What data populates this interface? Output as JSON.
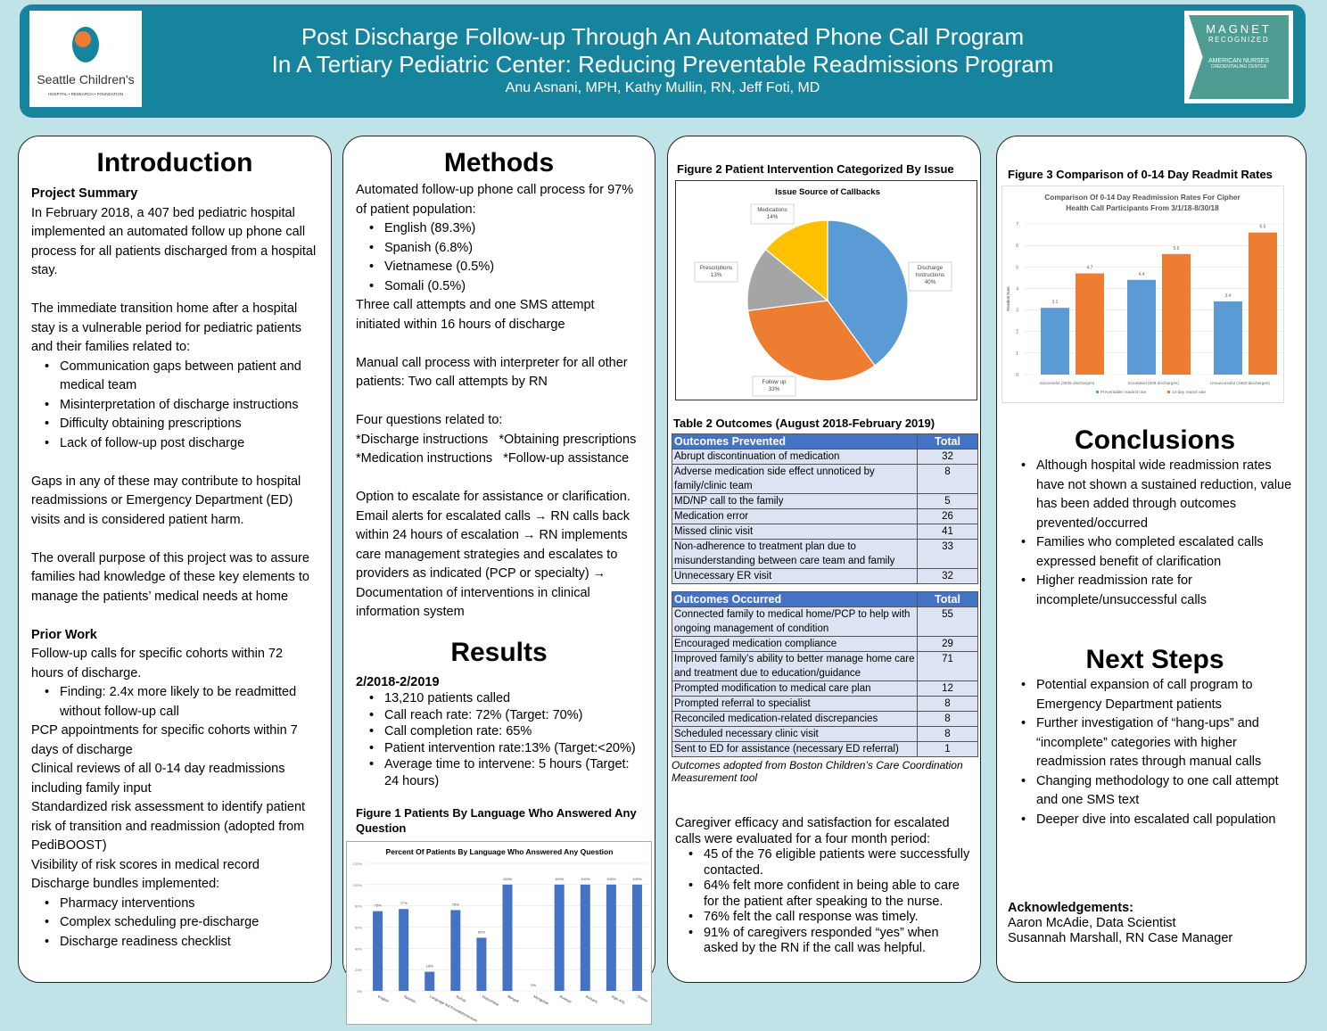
{
  "header": {
    "title_line1": "Post Discharge Follow-up Through An Automated Phone Call Program",
    "title_line2": "In A Tertiary Pediatric Center: Reducing Preventable Readmissions Program",
    "authors": "Anu Asnani, MPH, Kathy Mullin, RN, Jeff Foti, MD",
    "logo_left": {
      "name": "Seattle Children's®",
      "tagline": "HOSPITAL • RESEARCH • FOUNDATION"
    },
    "logo_right": {
      "l1": "MAGNET",
      "l2": "RECOGNIZED",
      "l3": "AMERICAN NURSES",
      "l4": "CREDENTIALING CENTER"
    },
    "color": "#17849d"
  },
  "intro": {
    "title": "Introduction",
    "blocks": [
      {
        "t": "h",
        "text": "Project Summary"
      },
      {
        "t": "p",
        "text": "In February 2018, a 407 bed pediatric hospital implemented an automated follow up phone call process for all patients discharged from a hospital stay."
      },
      {
        "t": "p",
        "gap": true,
        "text": "The immediate transition home after a hospital stay is a vulnerable period for pediatric patients and their families related to:"
      },
      {
        "t": "ul",
        "items": [
          "Communication gaps between patient and medical team",
          "Misinterpretation of discharge instructions",
          "Difficulty obtaining prescriptions",
          "Lack of follow-up post discharge"
        ]
      },
      {
        "t": "p",
        "gap": true,
        "text": "Gaps in any of these may contribute to hospital readmissions or Emergency Department (ED) visits and is considered patient harm."
      },
      {
        "t": "p",
        "gap": true,
        "text": "The overall purpose of this project was to assure families had knowledge of these key elements to manage the patients’ medical needs at home"
      },
      {
        "t": "h",
        "gap": true,
        "text": "Prior Work"
      },
      {
        "t": "p",
        "text": "Follow-up calls for specific cohorts within 72 hours of discharge."
      },
      {
        "t": "ul",
        "items": [
          "Finding: 2.4x more likely to be readmitted without follow-up call"
        ]
      },
      {
        "t": "p",
        "text": "PCP appointments for specific cohorts within 7 days of discharge"
      },
      {
        "t": "p",
        "text": "Clinical reviews of all 0-14 day readmissions including family input"
      },
      {
        "t": "p",
        "text": "Standardized risk assessment to identify patient risk of transition and readmission (adopted from PediBOOST)"
      },
      {
        "t": "p",
        "text": "Visibility of risk scores in medical record"
      },
      {
        "t": "p",
        "text": "Discharge bundles implemented:"
      },
      {
        "t": "ul",
        "items": [
          "Pharmacy interventions",
          "Complex scheduling pre-discharge",
          "Discharge readiness checklist"
        ]
      }
    ]
  },
  "methods": {
    "title": "Methods",
    "blocks": [
      {
        "t": "p",
        "text": "Automated follow-up phone call process for 97% of patient population:"
      },
      {
        "t": "ul",
        "items": [
          "English (89.3%)",
          "Spanish (6.8%)",
          "Vietnamese (0.5%)",
          "Somali (0.5%)"
        ]
      },
      {
        "t": "p",
        "text": "Three call attempts and one SMS attempt initiated within 16 hours of discharge"
      },
      {
        "t": "p",
        "gap": true,
        "text": "Manual call process with interpreter for all other patients: Two call attempts by RN"
      },
      {
        "t": "p",
        "gap": true,
        "text": "Four questions related to:"
      },
      {
        "t": "p",
        "text": "*Discharge instructions   *Obtaining prescriptions"
      },
      {
        "t": "p",
        "text": "*Medication instructions   *Follow-up assistance"
      },
      {
        "t": "p",
        "gap": true,
        "text": "Option to escalate for assistance or clarification. Email alerts for escalated calls → RN calls back within 24 hours of escalation → RN implements care management strategies and escalates to providers as indicated (PCP or specialty) → Documentation of interventions in clinical information system"
      }
    ]
  },
  "results": {
    "title": "Results",
    "blocks": [
      {
        "t": "h",
        "text": "2/2018-2/2019"
      },
      {
        "t": "ul",
        "items": [
          "13,210 patients called",
          "Call reach rate: 72% (Target: 70%)",
          "Call completion rate: 65%",
          "Patient intervention rate:13% (Target:<20%)",
          "Average time to intervene: 5 hours (Target: 24 hours)"
        ]
      }
    ],
    "figure1_caption": "Figure 1 Patients By Language Who Answered Any Question"
  },
  "column3": {
    "figure2_caption": "Figure 2 Patient Intervention Categorized By Issue",
    "table_title": "Table 2 Outcomes (August 2018-February 2019)",
    "prevented": {
      "headers": [
        "Outcomes Prevented",
        "Total"
      ],
      "rows": [
        [
          "Abrupt discontinuation of medication",
          "32"
        ],
        [
          "Adverse medication side effect unnoticed by family/clinic team",
          "8"
        ],
        [
          "MD/NP call to the family",
          "5"
        ],
        [
          "Medication error",
          "26"
        ],
        [
          "Missed clinic visit",
          "41"
        ],
        [
          "Non-adherence to treatment plan due to misunderstanding between care team and family",
          "33"
        ],
        [
          "Unnecessary ER visit",
          "32"
        ]
      ]
    },
    "occurred": {
      "headers": [
        "Outcomes Occurred",
        "Total"
      ],
      "rows": [
        [
          "Connected family to medical home/PCP to help with ongoing management of condition",
          "55"
        ],
        [
          "Encouraged medication compliance",
          "29"
        ],
        [
          "Improved family’s ability to better manage home care and treatment due to education/guidance",
          "71"
        ],
        [
          "Prompted modification to medical care plan",
          "12"
        ],
        [
          "Prompted referral to specialist",
          "8"
        ],
        [
          "Reconciled medication-related discrepancies",
          "8"
        ],
        [
          "Scheduled necessary clinic visit",
          "8"
        ],
        [
          "Sent to ED for assistance (necessary ED referral)",
          "1"
        ]
      ]
    },
    "table_note": "Outcomes adopted from Boston Children’s Care Coordination Measurement tool",
    "blocks": [
      {
        "t": "p",
        "text": "Caregiver efficacy and satisfaction for escalated calls were evaluated for a four month period:"
      },
      {
        "t": "ul",
        "items": [
          "45 of the 76 eligible patients were successfully contacted.",
          "64% felt more confident in being able to care for the patient after speaking to the nurse.",
          "76% felt the call response was timely.",
          "91% of caregivers responded “yes” when asked by the RN if the call was helpful."
        ]
      }
    ]
  },
  "column4": {
    "figure3_caption": "Figure 3 Comparison of 0-14 Day Readmit Rates",
    "conclusions": {
      "title": "Conclusions",
      "blocks": [
        {
          "t": "ul",
          "items": [
            "Although hospital wide readmission rates have not shown a sustained reduction, value has been added through outcomes prevented/occurred",
            "Families who completed escalated calls expressed benefit of clarification",
            "Higher readmission rate for incomplete/unsuccessful calls"
          ]
        }
      ]
    },
    "next_steps": {
      "title": "Next Steps",
      "blocks": [
        {
          "t": "ul",
          "items": [
            "Potential expansion of call program to Emergency Department patients",
            "Further investigation of “hang-ups” and “incomplete” categories with higher readmission rates through manual calls",
            "Changing methodology to one call attempt and one SMS text",
            "Deeper dive into escalated call population"
          ]
        }
      ]
    },
    "ack": {
      "title": "Acknowledgements:",
      "lines": [
        "Aaron McAdie, Data Scientist",
        "Susannah Marshall, RN Case Manager"
      ]
    }
  },
  "chart_data": [
    {
      "id": "fig1",
      "type": "bar",
      "title": "Percent Of Patients By Language Who Answered Any Question",
      "categories": [
        "English",
        "Spanish",
        "Language Not Provided/Unknown",
        "Somali",
        "Vietnamese",
        "Bengali",
        "Mongolian",
        "Russian",
        "Amharic",
        "Sign-ASL",
        "Oromo"
      ],
      "values": [
        75,
        77,
        18,
        76,
        50,
        100,
        0,
        100,
        100,
        100,
        100
      ],
      "data_labels": [
        "75%",
        "77%",
        "18%",
        "76%",
        "50%",
        "100%",
        "0%",
        "100%",
        "100%",
        "100%",
        "100%"
      ],
      "ylim": [
        0,
        120
      ],
      "yticks": [
        "0%",
        "20%",
        "40%",
        "60%",
        "80%",
        "100%",
        "120%"
      ],
      "grid": true,
      "color": "#4472c4"
    },
    {
      "id": "fig2",
      "type": "pie",
      "title": "Issue Source of Callbacks",
      "slices": [
        {
          "label": "Discharge Instructions",
          "value": 40,
          "text": "40%",
          "color": "#5b9bd5"
        },
        {
          "label": "Follow up",
          "value": 33,
          "text": "33%",
          "color": "#ed7d31"
        },
        {
          "label": "Prescriptions",
          "value": 13,
          "text": "13%",
          "color": "#a5a5a5"
        },
        {
          "label": "Medications",
          "value": 14,
          "text": "14%",
          "color": "#ffc000"
        }
      ]
    },
    {
      "id": "fig3",
      "type": "bar",
      "title": "Comparison Of 0-14 Day Readmission Rates For Cipher Health Call Participants From 3/1/18-8/30/18",
      "categories": [
        "Successful (3538 discharges)",
        "Escalated (605 discharges)",
        "Unsuccessful (1862 discharges)"
      ],
      "series": [
        {
          "name": "Preventable readmit rate",
          "values": [
            3.1,
            4.4,
            3.4
          ],
          "color": "#5b9bd5"
        },
        {
          "name": "14-day reamit rate",
          "values": [
            4.7,
            5.6,
            6.6
          ],
          "color": "#ed7d31"
        }
      ],
      "ylabel": "Readmit Rate",
      "ylim": [
        0,
        7
      ],
      "yticks": [
        "0",
        "1",
        "2",
        "3",
        "4",
        "5",
        "6",
        "7"
      ],
      "grid": true,
      "legend": "bottom"
    }
  ]
}
